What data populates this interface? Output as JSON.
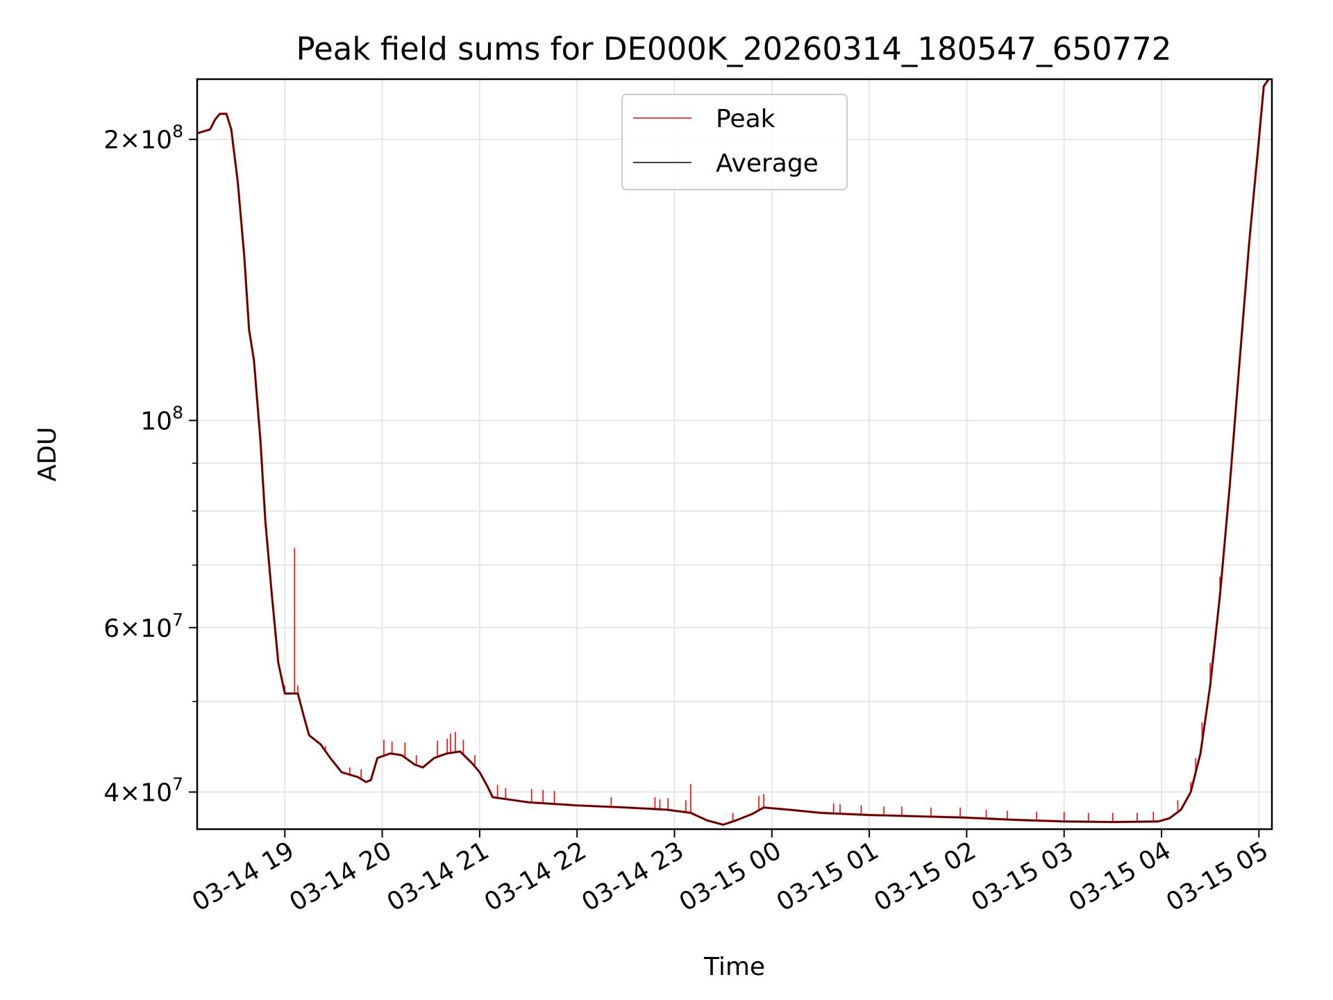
{
  "chart_data": {
    "type": "line",
    "title": "Peak field sums for DE000K_20260314_180547_650772",
    "xlabel": "Time",
    "ylabel": "ADU",
    "y_scale": "log",
    "ylim": [
      36500000,
      232000000
    ],
    "xlim": [
      "2026-03-14 18:06",
      "2026-03-15 05:08"
    ],
    "grid": true,
    "legend_position": "upper center",
    "x_ticks": [
      {
        "t": "2026-03-14 19:00",
        "label": "03-14 19"
      },
      {
        "t": "2026-03-14 20:00",
        "label": "03-14 20"
      },
      {
        "t": "2026-03-14 21:00",
        "label": "03-14 21"
      },
      {
        "t": "2026-03-14 22:00",
        "label": "03-14 22"
      },
      {
        "t": "2026-03-14 23:00",
        "label": "03-14 23"
      },
      {
        "t": "2026-03-15 00:00",
        "label": "03-15 00"
      },
      {
        "t": "2026-03-15 01:00",
        "label": "03-15 01"
      },
      {
        "t": "2026-03-15 02:00",
        "label": "03-15 02"
      },
      {
        "t": "2026-03-15 03:00",
        "label": "03-15 03"
      },
      {
        "t": "2026-03-15 04:00",
        "label": "03-15 04"
      },
      {
        "t": "2026-03-15 05:00",
        "label": "03-15 05"
      }
    ],
    "y_ticks": [
      {
        "value": 40000000,
        "mant": "4",
        "exp": "7"
      },
      {
        "value": 60000000,
        "mant": "6",
        "exp": "7"
      },
      {
        "value": 100000000,
        "mant": "",
        "exp": "8"
      },
      {
        "value": 200000000,
        "mant": "2",
        "exp": "8"
      }
    ],
    "y_minor": [
      50000000,
      70000000,
      80000000,
      90000000
    ],
    "colors": {
      "peak": "#ff0000",
      "average": "#000000",
      "grid": "#e6e6e6"
    },
    "series": [
      {
        "name": "Average",
        "points": [
          [
            "2026-03-14 18:06",
            203000000
          ],
          [
            "2026-03-14 18:14",
            205000000
          ],
          [
            "2026-03-14 18:17",
            210000000
          ],
          [
            "2026-03-14 18:20",
            213000000
          ],
          [
            "2026-03-14 18:24",
            213000000
          ],
          [
            "2026-03-14 18:27",
            205000000
          ],
          [
            "2026-03-14 18:31",
            180000000
          ],
          [
            "2026-03-14 18:35",
            150000000
          ],
          [
            "2026-03-14 18:38",
            125000000
          ],
          [
            "2026-03-14 18:41",
            116000000
          ],
          [
            "2026-03-14 18:45",
            95000000
          ],
          [
            "2026-03-14 18:48",
            78000000
          ],
          [
            "2026-03-14 18:52",
            65000000
          ],
          [
            "2026-03-14 18:56",
            55000000
          ],
          [
            "2026-03-14 19:00",
            51000000
          ],
          [
            "2026-03-14 19:08",
            51000000
          ],
          [
            "2026-03-14 19:12",
            48000000
          ],
          [
            "2026-03-14 19:15",
            46000000
          ],
          [
            "2026-03-14 19:22",
            45000000
          ],
          [
            "2026-03-14 19:28",
            43500000
          ],
          [
            "2026-03-14 19:35",
            42000000
          ],
          [
            "2026-03-14 19:45",
            41500000
          ],
          [
            "2026-03-14 19:50",
            41000000
          ],
          [
            "2026-03-14 19:53",
            41200000
          ],
          [
            "2026-03-14 19:57",
            43500000
          ],
          [
            "2026-03-14 20:05",
            44000000
          ],
          [
            "2026-03-14 20:12",
            43800000
          ],
          [
            "2026-03-14 20:20",
            42800000
          ],
          [
            "2026-03-14 20:25",
            42500000
          ],
          [
            "2026-03-14 20:32",
            43500000
          ],
          [
            "2026-03-14 20:40",
            44000000
          ],
          [
            "2026-03-14 20:48",
            44200000
          ],
          [
            "2026-03-14 20:55",
            43000000
          ],
          [
            "2026-03-14 21:00",
            42000000
          ],
          [
            "2026-03-14 21:05",
            40500000
          ],
          [
            "2026-03-14 21:08",
            39500000
          ],
          [
            "2026-03-14 21:30",
            39000000
          ],
          [
            "2026-03-14 22:00",
            38700000
          ],
          [
            "2026-03-14 22:30",
            38500000
          ],
          [
            "2026-03-14 22:55",
            38300000
          ],
          [
            "2026-03-14 23:10",
            38000000
          ],
          [
            "2026-03-14 23:20",
            37300000
          ],
          [
            "2026-03-14 23:30",
            36900000
          ],
          [
            "2026-03-14 23:38",
            37300000
          ],
          [
            "2026-03-14 23:48",
            37900000
          ],
          [
            "2026-03-14 23:55",
            38500000
          ],
          [
            "2026-03-15 00:10",
            38300000
          ],
          [
            "2026-03-15 00:30",
            38000000
          ],
          [
            "2026-03-15 01:00",
            37800000
          ],
          [
            "2026-03-15 02:00",
            37550000
          ],
          [
            "2026-03-15 02:30",
            37350000
          ],
          [
            "2026-03-15 03:00",
            37200000
          ],
          [
            "2026-03-15 03:30",
            37150000
          ],
          [
            "2026-03-15 03:58",
            37200000
          ],
          [
            "2026-03-15 04:05",
            37500000
          ],
          [
            "2026-03-15 04:12",
            38300000
          ],
          [
            "2026-03-15 04:18",
            40000000
          ],
          [
            "2026-03-15 04:24",
            44000000
          ],
          [
            "2026-03-15 04:30",
            52000000
          ],
          [
            "2026-03-15 04:36",
            65000000
          ],
          [
            "2026-03-15 04:42",
            85000000
          ],
          [
            "2026-03-15 04:48",
            115000000
          ],
          [
            "2026-03-15 04:54",
            155000000
          ],
          [
            "2026-03-15 05:00",
            200000000
          ],
          [
            "2026-03-15 05:03",
            228000000
          ],
          [
            "2026-03-15 05:06",
            232000000
          ]
        ]
      },
      {
        "name": "Peak",
        "spikes": [
          [
            "2026-03-14 19:06",
            73000000
          ],
          [
            "2026-03-14 19:00",
            52000000
          ],
          [
            "2026-03-14 19:08",
            52000000
          ],
          [
            "2026-03-14 19:25",
            44800000
          ],
          [
            "2026-03-14 19:40",
            42500000
          ],
          [
            "2026-03-14 19:47",
            42300000
          ],
          [
            "2026-03-14 19:57",
            43200000
          ],
          [
            "2026-03-14 20:01",
            45500000
          ],
          [
            "2026-03-14 20:06",
            45300000
          ],
          [
            "2026-03-14 20:14",
            45200000
          ],
          [
            "2026-03-14 20:21",
            43800000
          ],
          [
            "2026-03-14 20:34",
            45400000
          ],
          [
            "2026-03-14 20:40",
            45600000
          ],
          [
            "2026-03-14 20:42",
            46200000
          ],
          [
            "2026-03-14 20:45",
            46400000
          ],
          [
            "2026-03-14 20:50",
            45500000
          ],
          [
            "2026-03-14 20:57",
            43800000
          ],
          [
            "2026-03-14 21:11",
            40700000
          ],
          [
            "2026-03-14 21:16",
            40400000
          ],
          [
            "2026-03-14 21:32",
            40300000
          ],
          [
            "2026-03-14 21:39",
            40200000
          ],
          [
            "2026-03-14 21:46",
            40100000
          ],
          [
            "2026-03-14 22:21",
            39500000
          ],
          [
            "2026-03-14 22:48",
            39500000
          ],
          [
            "2026-03-14 22:51",
            39300000
          ],
          [
            "2026-03-14 22:56",
            39400000
          ],
          [
            "2026-03-14 23:07",
            39200000
          ],
          [
            "2026-03-14 23:10",
            40800000
          ],
          [
            "2026-03-14 23:36",
            38000000
          ],
          [
            "2026-03-14 23:52",
            39600000
          ],
          [
            "2026-03-14 23:55",
            39800000
          ],
          [
            "2026-03-15 00:38",
            38900000
          ],
          [
            "2026-03-15 00:42",
            38800000
          ],
          [
            "2026-03-15 00:55",
            38700000
          ],
          [
            "2026-03-15 01:09",
            38600000
          ],
          [
            "2026-03-15 01:20",
            38600000
          ],
          [
            "2026-03-15 01:38",
            38500000
          ],
          [
            "2026-03-15 01:56",
            38500000
          ],
          [
            "2026-03-15 02:12",
            38300000
          ],
          [
            "2026-03-15 02:25",
            38200000
          ],
          [
            "2026-03-15 02:43",
            38100000
          ],
          [
            "2026-03-15 03:00",
            38100000
          ],
          [
            "2026-03-15 03:15",
            38000000
          ],
          [
            "2026-03-15 03:30",
            38000000
          ],
          [
            "2026-03-15 03:45",
            38000000
          ],
          [
            "2026-03-15 03:55",
            38100000
          ],
          [
            "2026-03-15 04:10",
            39200000
          ],
          [
            "2026-03-15 04:18",
            41000000
          ],
          [
            "2026-03-15 04:21",
            43500000
          ],
          [
            "2026-03-15 04:25",
            47500000
          ],
          [
            "2026-03-15 04:30",
            55000000
          ],
          [
            "2026-03-15 04:36",
            68000000
          ]
        ]
      }
    ]
  }
}
